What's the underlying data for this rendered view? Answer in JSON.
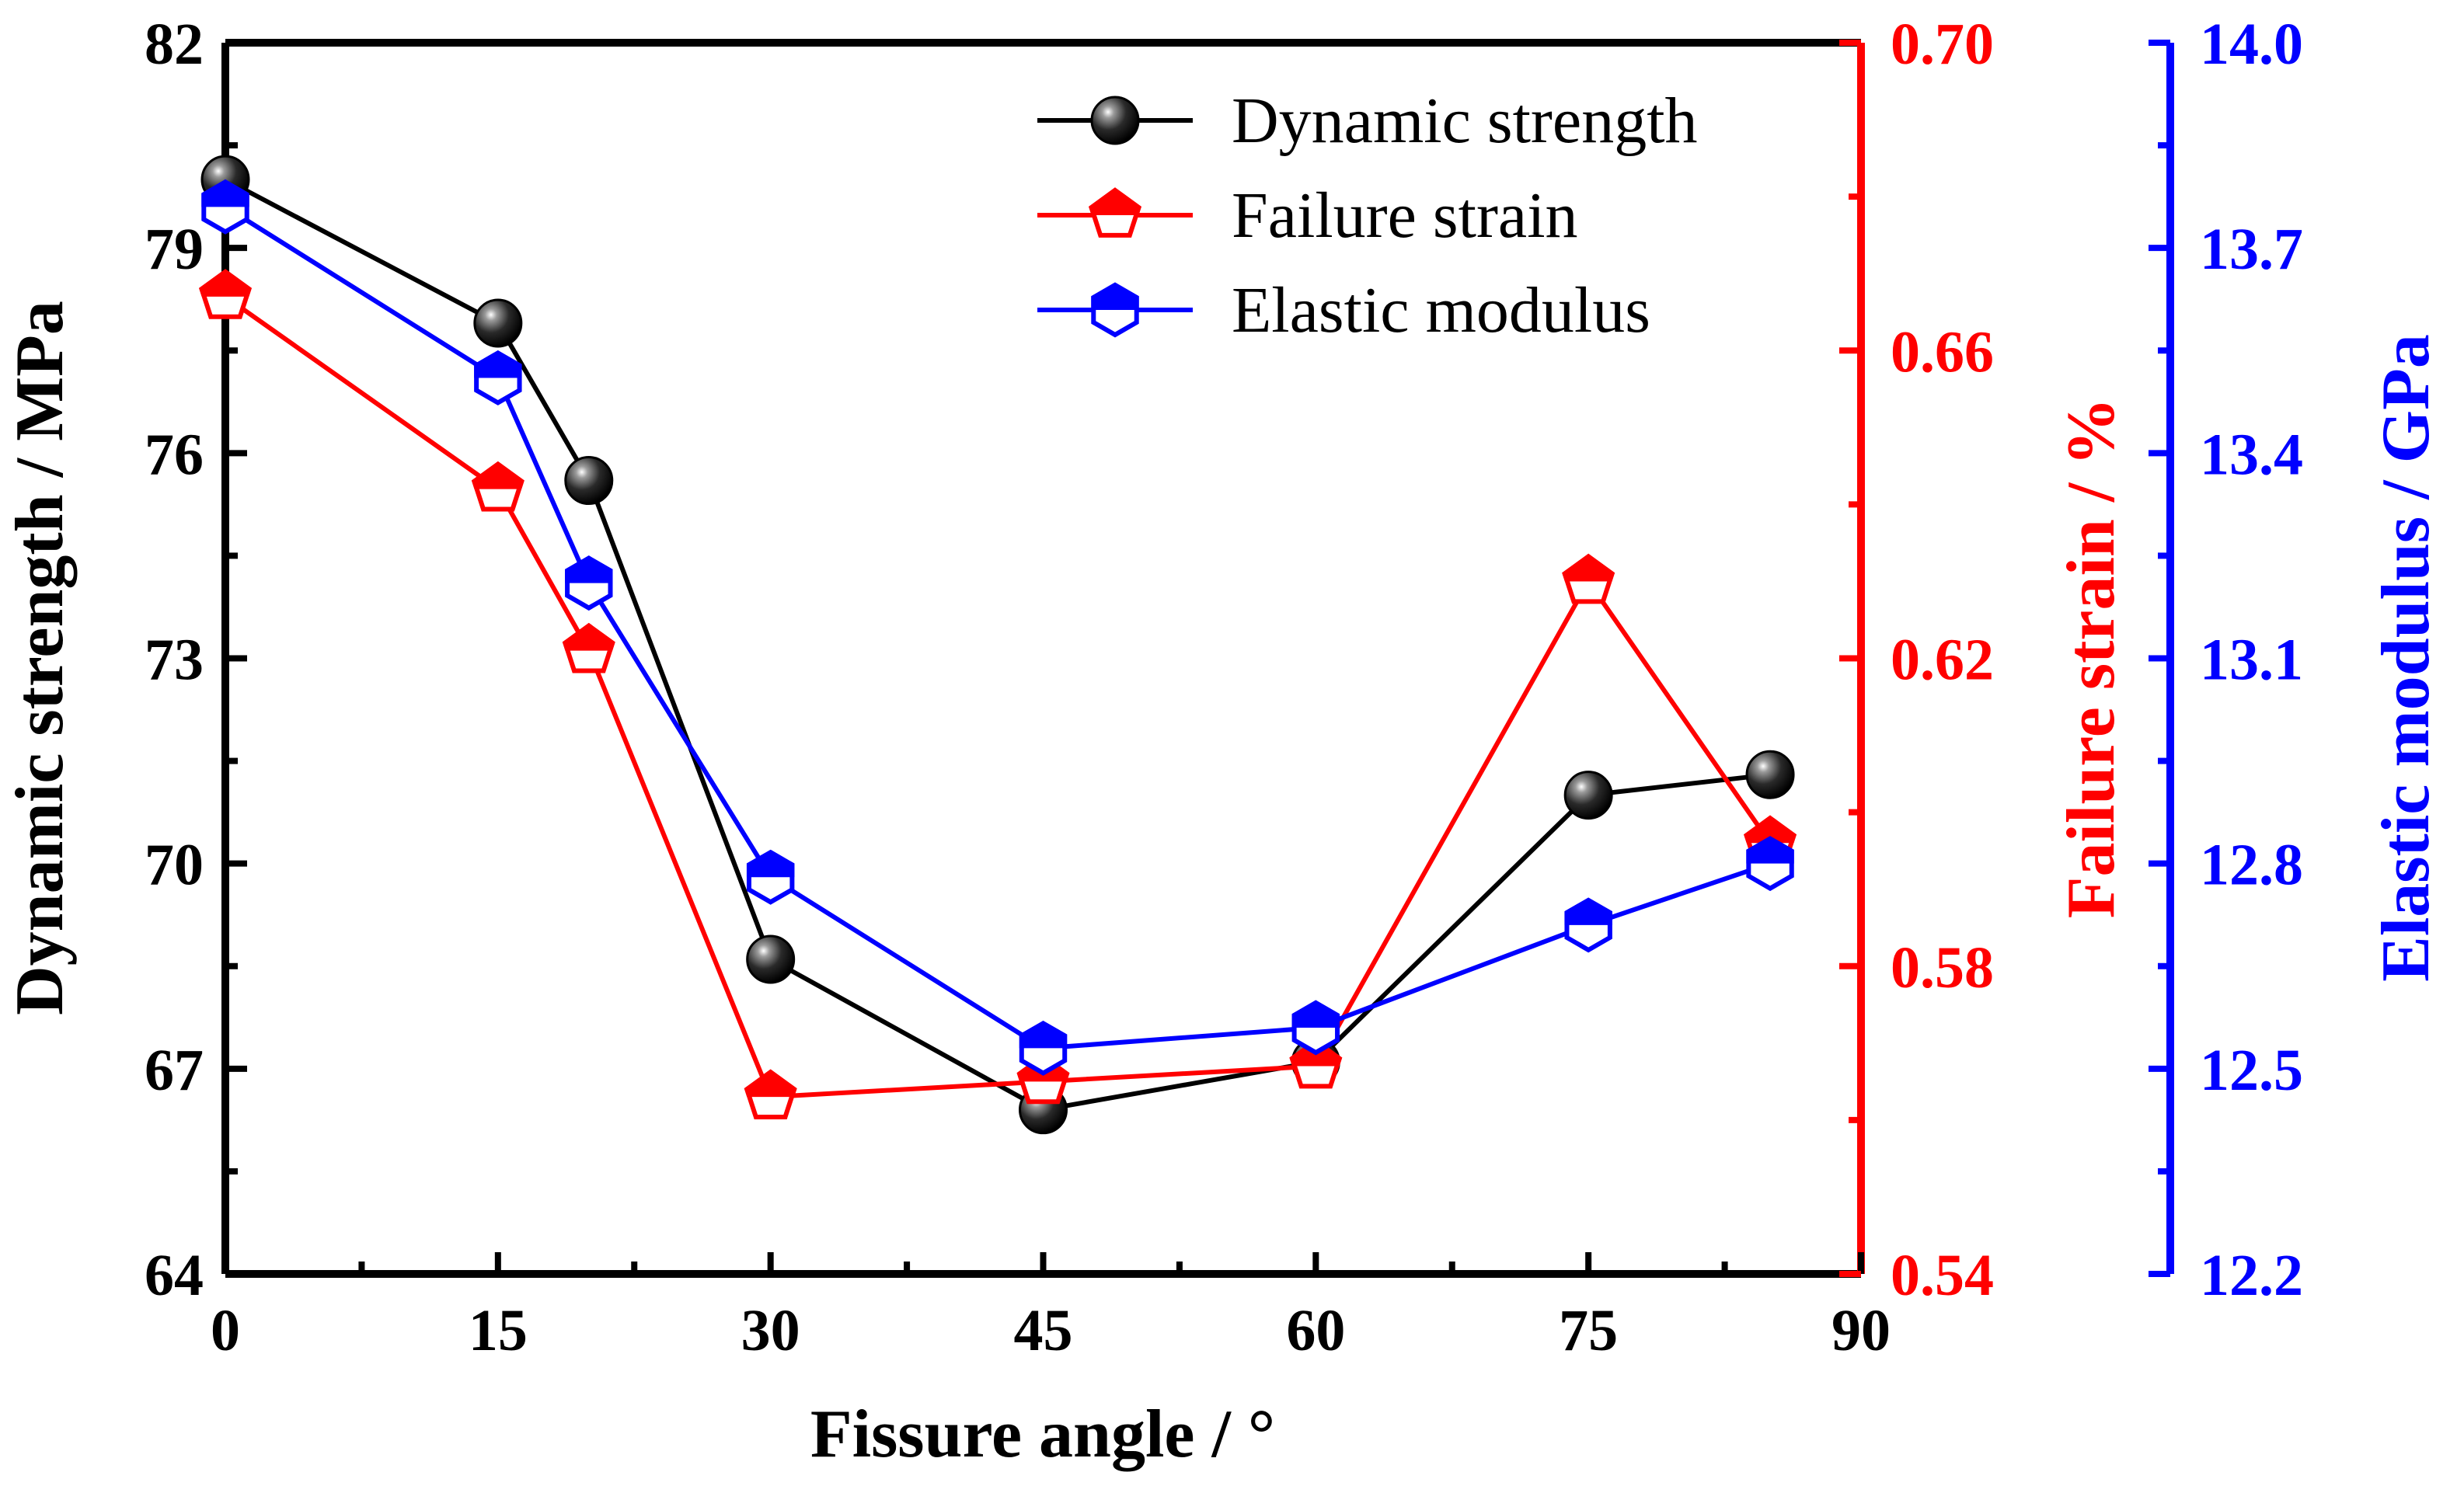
{
  "chart_data": {
    "type": "line",
    "title": "",
    "xlabel": "Fissure angle / °",
    "x_ticks": [
      0,
      15,
      30,
      45,
      60,
      75,
      90
    ],
    "xlim": [
      0,
      90
    ],
    "grid": false,
    "legend_position": "top-right",
    "axes": {
      "left": {
        "label": "Dynamic strength / MPa",
        "lim": [
          64,
          82
        ],
        "ticks": [
          "64",
          "67",
          "70",
          "73",
          "76",
          "79",
          "82"
        ],
        "color": "#000000"
      },
      "right1": {
        "label": "Failure strain / %",
        "lim": [
          0.54,
          0.7
        ],
        "ticks": [
          "0.54",
          "0.58",
          "0.62",
          "0.66",
          "0.70"
        ],
        "color": "#ff0000"
      },
      "right2": {
        "label": "Elastic modulus / GPa",
        "lim": [
          12.2,
          14.0
        ],
        "ticks": [
          "12.2",
          "12.5",
          "12.8",
          "13.1",
          "13.4",
          "13.7",
          "14.0"
        ],
        "color": "#0000ff"
      }
    },
    "x": [
      0,
      15,
      20,
      30,
      45,
      60,
      75,
      85
    ],
    "series": [
      {
        "name": "Dynamic strength",
        "axis": "left",
        "color": "#000000",
        "marker": "sphere",
        "values": [
          80.0,
          77.9,
          75.6,
          68.6,
          66.4,
          67.1,
          71.0,
          71.3
        ]
      },
      {
        "name": "Failure strain",
        "axis": "right1",
        "color": "#ff0000",
        "marker": "pentagon",
        "values": [
          0.667,
          0.642,
          0.621,
          0.563,
          0.565,
          0.567,
          0.63,
          0.596
        ]
      },
      {
        "name": "Elastic modulus",
        "axis": "right2",
        "color": "#0000ff",
        "marker": "hexagon",
        "values": [
          13.76,
          13.51,
          13.21,
          12.78,
          12.53,
          12.56,
          12.71,
          12.8
        ]
      }
    ]
  }
}
